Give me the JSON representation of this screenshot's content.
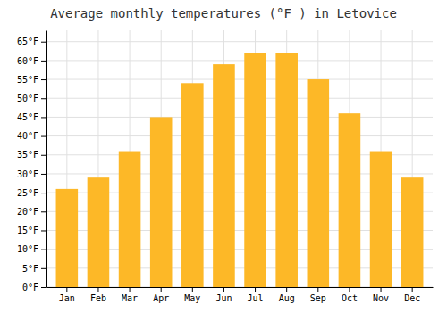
{
  "chart_data": {
    "type": "bar",
    "title": "Average monthly temperatures (°F ) in Letovice",
    "categories": [
      "Jan",
      "Feb",
      "Mar",
      "Apr",
      "May",
      "Jun",
      "Jul",
      "Aug",
      "Sep",
      "Oct",
      "Nov",
      "Dec"
    ],
    "values": [
      26,
      29,
      36,
      45,
      54,
      59,
      62,
      62,
      55,
      46,
      36,
      29
    ],
    "color": "#FDB827",
    "ylim": [
      0,
      68
    ],
    "yticks": [
      {
        "value": 0,
        "label": "0°F"
      },
      {
        "value": 5,
        "label": "5°F"
      },
      {
        "value": 10,
        "label": "10°F"
      },
      {
        "value": 15,
        "label": "15°F"
      },
      {
        "value": 20,
        "label": "20°F"
      },
      {
        "value": 25,
        "label": "25°F"
      },
      {
        "value": 30,
        "label": "30°F"
      },
      {
        "value": 35,
        "label": "35°F"
      },
      {
        "value": 40,
        "label": "40°F"
      },
      {
        "value": 45,
        "label": "45°F"
      },
      {
        "value": 50,
        "label": "50°F"
      },
      {
        "value": 55,
        "label": "55°F"
      },
      {
        "value": 60,
        "label": "60°F"
      },
      {
        "value": 65,
        "label": "65°F"
      }
    ],
    "grid": true
  }
}
